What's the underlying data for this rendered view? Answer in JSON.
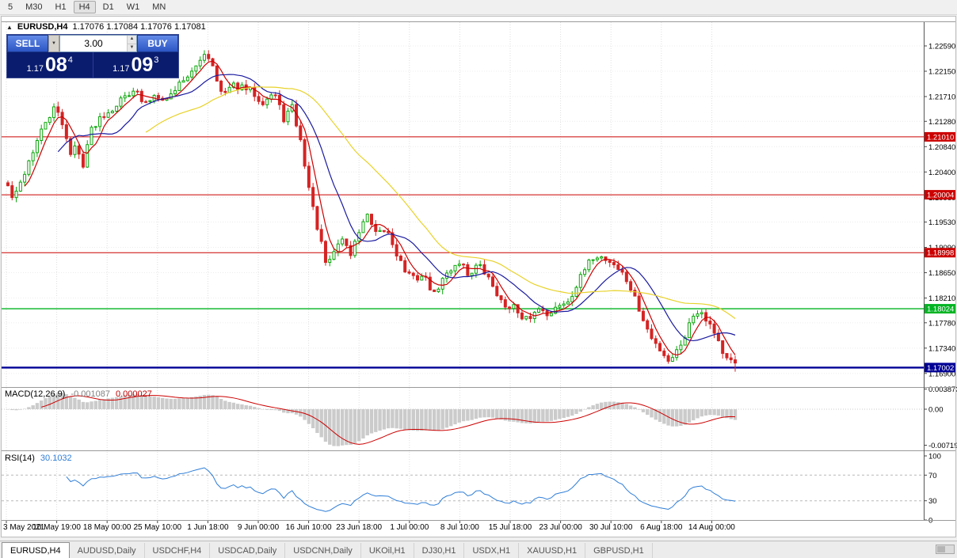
{
  "toolbar": {
    "items": [
      "5",
      "M30",
      "H1",
      "H4",
      "D1",
      "W1",
      "MN"
    ],
    "active_index": 3
  },
  "symbol_header": {
    "collapse": "▲",
    "title": "EURUSD,H4",
    "ohlc": "1.17076 1.17084 1.17076 1.17081"
  },
  "trade_panel": {
    "sell_label": "SELL",
    "buy_label": "BUY",
    "volume": "3.00",
    "preset_icon": "▼",
    "spin_up": "▲",
    "spin_down": "▼",
    "sell_small": "1.17",
    "sell_big": "08",
    "sell_sup": "4",
    "buy_small": "1.17",
    "buy_big": "09",
    "buy_sup": "3"
  },
  "chart_data": {
    "type": "candlestick",
    "symbol": "EURUSD",
    "timeframe": "H4",
    "title": "EURUSD,H4",
    "open": 1.17076,
    "high": 1.17084,
    "low": 1.17076,
    "close": 1.17081,
    "bull_color": "#0ca50c",
    "bear_color": "#d42424",
    "y_ticks": [
      "1.22590",
      "1.22150",
      "1.21710",
      "1.21280",
      "1.20840",
      "1.20400",
      "1.19960",
      "1.19530",
      "1.19090",
      "1.18650",
      "1.18210",
      "1.17780",
      "1.17340",
      "1.16900"
    ],
    "x_labels": [
      "3 May 2021",
      "10 May 19:00",
      "18 May 00:00",
      "25 May 10:00",
      "1 Jun 18:00",
      "9 Jun 00:00",
      "16 Jun 10:00",
      "23 Jun 18:00",
      "1 Jul 00:00",
      "8 Jul 10:00",
      "15 Jul 18:00",
      "23 Jul 00:00",
      "30 Jul 10:00",
      "6 Aug 18:00",
      "14 Aug 00:00"
    ],
    "h_lines": [
      {
        "label": "1.21010",
        "price": 1.2101,
        "color": "#cc0000",
        "width": 1
      },
      {
        "label": "1.20004",
        "price": 1.20004,
        "color": "#cc0000",
        "width": 1
      },
      {
        "label": "1.18998",
        "price": 1.18998,
        "color": "#cc0000",
        "width": 1
      },
      {
        "label": "1.18024",
        "price": 1.18024,
        "color": "#00b422",
        "width": 1.4
      },
      {
        "label": "1.17002",
        "price": 1.17002,
        "color": "#000096",
        "width": 2.4
      }
    ],
    "ma_lines": [
      {
        "period": 5,
        "color": "#cc0000"
      },
      {
        "period": 13,
        "color": "#1a1aa0"
      },
      {
        "period": 34,
        "color": "#e8d22a"
      }
    ],
    "candle_count": 175,
    "seed": 42,
    "last_close": 1.17081,
    "last_low": 1.1693,
    "price_path": [
      [
        0.0,
        1.2015
      ],
      [
        0.007,
        1.1992
      ],
      [
        0.013,
        1.2006
      ],
      [
        0.029,
        1.206
      ],
      [
        0.051,
        1.2125
      ],
      [
        0.065,
        1.2152
      ],
      [
        0.078,
        1.2115
      ],
      [
        0.087,
        1.2066
      ],
      [
        0.094,
        1.209
      ],
      [
        0.102,
        1.2046
      ],
      [
        0.113,
        1.211
      ],
      [
        0.127,
        1.2136
      ],
      [
        0.143,
        1.215
      ],
      [
        0.159,
        1.217
      ],
      [
        0.174,
        1.2186
      ],
      [
        0.187,
        1.2155
      ],
      [
        0.203,
        1.2176
      ],
      [
        0.219,
        1.2166
      ],
      [
        0.239,
        1.22
      ],
      [
        0.257,
        1.2216
      ],
      [
        0.271,
        1.225
      ],
      [
        0.282,
        1.2226
      ],
      [
        0.295,
        1.217
      ],
      [
        0.308,
        1.219
      ],
      [
        0.322,
        1.2186
      ],
      [
        0.336,
        1.218
      ],
      [
        0.349,
        1.2161
      ],
      [
        0.366,
        1.2178
      ],
      [
        0.38,
        1.213
      ],
      [
        0.39,
        1.2156
      ],
      [
        0.403,
        1.209
      ],
      [
        0.417,
        1.199
      ],
      [
        0.428,
        1.193
      ],
      [
        0.439,
        1.187
      ],
      [
        0.447,
        1.19
      ],
      [
        0.46,
        1.1926
      ],
      [
        0.471,
        1.1896
      ],
      [
        0.485,
        1.1945
      ],
      [
        0.493,
        1.1966
      ],
      [
        0.506,
        1.193
      ],
      [
        0.521,
        1.194
      ],
      [
        0.534,
        1.19
      ],
      [
        0.547,
        1.1866
      ],
      [
        0.557,
        1.1855
      ],
      [
        0.572,
        1.186
      ],
      [
        0.586,
        1.1826
      ],
      [
        0.596,
        1.185
      ],
      [
        0.612,
        1.1876
      ],
      [
        0.623,
        1.1886
      ],
      [
        0.633,
        1.186
      ],
      [
        0.646,
        1.188
      ],
      [
        0.658,
        1.186
      ],
      [
        0.67,
        1.1836
      ],
      [
        0.681,
        1.1806
      ],
      [
        0.694,
        1.181
      ],
      [
        0.707,
        1.178
      ],
      [
        0.72,
        1.179
      ],
      [
        0.733,
        1.1806
      ],
      [
        0.746,
        1.179
      ],
      [
        0.757,
        1.181
      ],
      [
        0.77,
        1.1816
      ],
      [
        0.783,
        1.1846
      ],
      [
        0.796,
        1.1876
      ],
      [
        0.807,
        1.1896
      ],
      [
        0.82,
        1.189
      ],
      [
        0.833,
        1.188
      ],
      [
        0.846,
        1.1862
      ],
      [
        0.859,
        1.183
      ],
      [
        0.872,
        1.1786
      ],
      [
        0.885,
        1.175
      ],
      [
        0.898,
        1.173
      ],
      [
        0.909,
        1.1712
      ],
      [
        0.92,
        1.173
      ],
      [
        0.931,
        1.1756
      ],
      [
        0.941,
        1.179
      ],
      [
        0.952,
        1.1802
      ],
      [
        0.963,
        1.178
      ],
      [
        0.974,
        1.1758
      ],
      [
        0.985,
        1.1718
      ],
      [
        1.0,
        1.1703
      ]
    ],
    "indicators": {
      "macd": {
        "label": "MACD(12,26,9)",
        "value_main": "-0.001087",
        "value_signal": "0.000027",
        "scale": [
          "0.003873",
          "0.00",
          "-0.007195"
        ],
        "fast": 12,
        "slow": 26,
        "signal": 9
      },
      "rsi": {
        "label": "RSI(14)",
        "value": "30.1032",
        "levels": [
          "100",
          "70",
          "30",
          "0"
        ],
        "period": 14
      }
    }
  },
  "tabs": {
    "items": [
      "EURUSD,H4",
      "AUDUSD,Daily",
      "USDCHF,H4",
      "USDCAD,Daily",
      "USDCNH,Daily",
      "UKOil,H1",
      "DJ30,H1",
      "USDX,H1",
      "XAUUSD,H1",
      "GBPUSD,H1"
    ],
    "active_index": 0
  }
}
